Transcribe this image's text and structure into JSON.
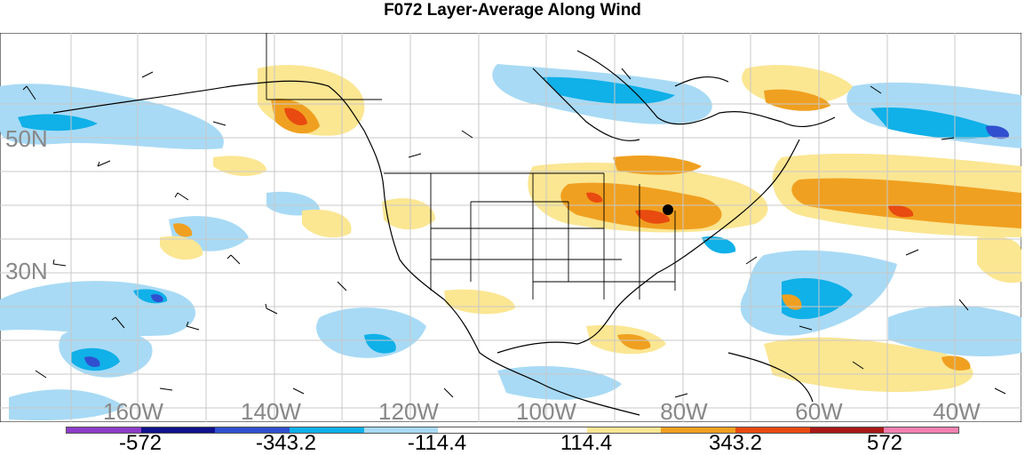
{
  "title": "F072 Layer-Average Along Wind",
  "lat_labels": [
    "50N",
    "30N"
  ],
  "lon_labels": [
    "160W",
    "140W",
    "120W",
    "100W",
    "80W",
    "60W",
    "40W"
  ],
  "colorbar": {
    "labels": [
      "-572",
      "-343.2",
      "-114.4",
      "114.4",
      "343.2",
      "572"
    ],
    "colors": [
      "#8c3cc8",
      "#10108c",
      "#3050d0",
      "#10b0e8",
      "#a8daf5",
      "#ffffff",
      "#ffffff",
      "#fbe692",
      "#f0a020",
      "#e84a10",
      "#a81818",
      "#f080b0"
    ]
  },
  "map_colors": {
    "ocean_blank": "#ffffff",
    "negative_light": "#a8daf5",
    "negative_medium": "#10b0e8",
    "negative_strong": "#3050d0",
    "positive_light": "#fbe692",
    "positive_medium": "#f0a020",
    "positive_strong": "#e84a10",
    "coastline": "#000000",
    "grid": "#c8c8c8"
  },
  "marker": "station-dot"
}
